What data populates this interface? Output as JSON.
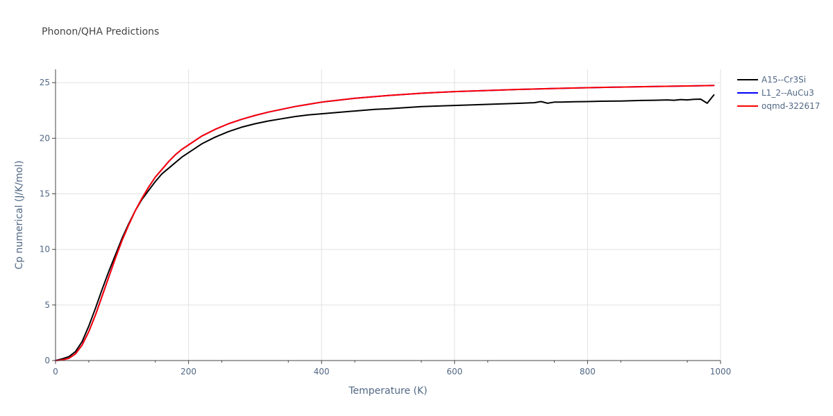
{
  "chart_data": {
    "type": "line",
    "title": "Phonon/QHA Predictions",
    "xlabel": "Temperature (K)",
    "ylabel": "Cp numerical (J/K/mol)",
    "xlim": [
      0,
      1000
    ],
    "ylim": [
      0,
      26.2
    ],
    "xticks": [
      0,
      200,
      400,
      600,
      800,
      1000
    ],
    "xtick_labels": [
      "0",
      "200",
      "400",
      "600",
      "800",
      "1000"
    ],
    "yticks": [
      0,
      5,
      10,
      15,
      20,
      25
    ],
    "ytick_labels": [
      "0",
      "5",
      "10",
      "15",
      "20",
      "25"
    ],
    "grid": true,
    "legend_position": "top-right",
    "series": [
      {
        "name": "A15--Cr3Si",
        "color": "#000000",
        "x": [
          0,
          10,
          20,
          30,
          40,
          50,
          60,
          70,
          80,
          90,
          100,
          110,
          120,
          130,
          140,
          150,
          160,
          170,
          180,
          190,
          200,
          220,
          240,
          260,
          280,
          300,
          320,
          340,
          360,
          380,
          400,
          420,
          450,
          480,
          500,
          550,
          600,
          650,
          700,
          720,
          730,
          740,
          750,
          760,
          780,
          800,
          810,
          820,
          850,
          880,
          900,
          920,
          930,
          940,
          950,
          960,
          970,
          980,
          990
        ],
        "y": [
          0,
          0.15,
          0.35,
          0.8,
          1.7,
          3.1,
          4.7,
          6.4,
          8.0,
          9.5,
          11.0,
          12.3,
          13.5,
          14.5,
          15.3,
          16.1,
          16.8,
          17.3,
          17.8,
          18.3,
          18.7,
          19.5,
          20.1,
          20.6,
          21.0,
          21.3,
          21.55,
          21.75,
          21.95,
          22.1,
          22.2,
          22.3,
          22.45,
          22.6,
          22.65,
          22.85,
          22.95,
          23.05,
          23.15,
          23.2,
          23.3,
          23.15,
          23.25,
          23.25,
          23.28,
          23.3,
          23.32,
          23.33,
          23.35,
          23.4,
          23.42,
          23.45,
          23.42,
          23.48,
          23.45,
          23.5,
          23.52,
          23.15,
          23.9
        ]
      },
      {
        "name": "L1_2--AuCu3",
        "color": "#0000ff",
        "x": [
          0,
          10,
          20,
          30,
          40,
          50,
          60,
          70,
          80,
          90,
          100,
          110,
          120,
          130,
          140,
          150,
          160,
          170,
          180,
          190,
          200,
          220,
          240,
          260,
          280,
          300,
          320,
          340,
          360,
          380,
          400,
          450,
          500,
          550,
          600,
          650,
          700,
          750,
          800,
          850,
          900,
          950,
          990
        ],
        "y": [
          0,
          0.05,
          0.2,
          0.6,
          1.4,
          2.6,
          4.1,
          5.8,
          7.5,
          9.2,
          10.8,
          12.2,
          13.5,
          14.6,
          15.6,
          16.5,
          17.2,
          17.9,
          18.5,
          19.0,
          19.4,
          20.2,
          20.8,
          21.3,
          21.7,
          22.05,
          22.35,
          22.6,
          22.85,
          23.05,
          23.25,
          23.6,
          23.85,
          24.05,
          24.2,
          24.3,
          24.4,
          24.48,
          24.55,
          24.6,
          24.65,
          24.7,
          24.75
        ]
      },
      {
        "name": "oqmd-322617",
        "color": "#ff0000",
        "x": [
          0,
          10,
          20,
          30,
          40,
          50,
          60,
          70,
          80,
          90,
          100,
          110,
          120,
          130,
          140,
          150,
          160,
          170,
          180,
          190,
          200,
          220,
          240,
          260,
          280,
          300,
          320,
          340,
          360,
          380,
          400,
          450,
          500,
          550,
          600,
          650,
          700,
          750,
          800,
          850,
          900,
          950,
          990
        ],
        "y": [
          0,
          0.05,
          0.2,
          0.6,
          1.4,
          2.6,
          4.1,
          5.8,
          7.5,
          9.2,
          10.8,
          12.2,
          13.5,
          14.6,
          15.6,
          16.5,
          17.2,
          17.9,
          18.5,
          19.0,
          19.4,
          20.2,
          20.8,
          21.3,
          21.7,
          22.05,
          22.35,
          22.6,
          22.85,
          23.05,
          23.25,
          23.6,
          23.85,
          24.05,
          24.2,
          24.3,
          24.4,
          24.48,
          24.55,
          24.6,
          24.65,
          24.7,
          24.75
        ]
      }
    ]
  }
}
